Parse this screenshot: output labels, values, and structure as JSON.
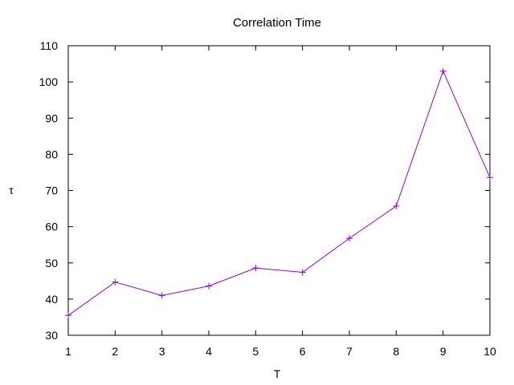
{
  "chart_data": {
    "type": "line",
    "title": "Correlation Time",
    "xlabel": "T",
    "ylabel": "τ",
    "xlim": [
      1,
      10
    ],
    "ylim": [
      30,
      110
    ],
    "xticks": [
      1,
      2,
      3,
      4,
      5,
      6,
      7,
      8,
      9,
      10
    ],
    "yticks": [
      30,
      40,
      50,
      60,
      70,
      80,
      90,
      100,
      110
    ],
    "grid": false,
    "legend": "none",
    "series": [
      {
        "color": "#9400d3",
        "marker": "plus",
        "x": [
          1,
          2,
          3,
          4,
          5,
          6,
          7,
          8,
          9,
          10
        ],
        "y": [
          35.5,
          44.7,
          41.0,
          43.6,
          48.6,
          47.4,
          56.8,
          65.7,
          103.0,
          73.6
        ]
      }
    ]
  }
}
